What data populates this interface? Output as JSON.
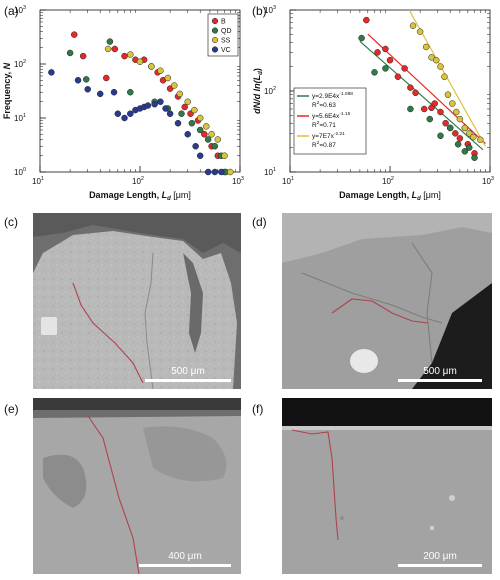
{
  "panel_letters": [
    "(a)",
    "(b)",
    "(c)",
    "(d)",
    "(e)",
    "(f)"
  ],
  "chart_data": [
    {
      "type": "scatter",
      "xscale": "log",
      "yscale": "log",
      "xlim": [
        10,
        1000
      ],
      "ylim": [
        1,
        1000
      ],
      "x_ticks": [
        "10",
        "10",
        "10"
      ],
      "x_tick_exps": [
        "1",
        "2",
        "3"
      ],
      "y_ticks": [
        "10",
        "10",
        "10",
        "10"
      ],
      "y_tick_exps": [
        "0",
        "1",
        "2",
        "3"
      ],
      "xlabel_prefix": "Damage Length, ",
      "xlabel_var": "L",
      "xlabel_sub": "d",
      "xlabel_unit": " [μm]",
      "ylabel_prefix": "Frequency, ",
      "ylabel_var": "N",
      "legend_position": "top-right",
      "series": [
        {
          "name": "B",
          "color": "#e32a2a",
          "points": [
            [
              22,
              350
            ],
            [
              27,
              140
            ],
            [
              46,
              55
            ],
            [
              56,
              190
            ],
            [
              70,
              140
            ],
            [
              90,
              120
            ],
            [
              110,
              120
            ],
            [
              130,
              90
            ],
            [
              150,
              70
            ],
            [
              170,
              50
            ],
            [
              200,
              35
            ],
            [
              240,
              25
            ],
            [
              280,
              16
            ],
            [
              320,
              12
            ],
            [
              380,
              9
            ],
            [
              440,
              5
            ],
            [
              520,
              3
            ],
            [
              600,
              2
            ],
            [
              700,
              1
            ]
          ]
        },
        {
          "name": "QD",
          "color": "#2f7a47",
          "points": [
            [
              20,
              160
            ],
            [
              29,
              52
            ],
            [
              50,
              260
            ],
            [
              80,
              30
            ],
            [
              140,
              20
            ],
            [
              190,
              15
            ],
            [
              260,
              12
            ],
            [
              330,
              8
            ],
            [
              400,
              6
            ],
            [
              480,
              4
            ],
            [
              560,
              3
            ],
            [
              650,
              2
            ],
            [
              720,
              1
            ]
          ]
        },
        {
          "name": "SS",
          "color": "#d9c33c",
          "points": [
            [
              48,
              190
            ],
            [
              80,
              150
            ],
            [
              100,
              110
            ],
            [
              130,
              90
            ],
            [
              160,
              75
            ],
            [
              190,
              55
            ],
            [
              220,
              40
            ],
            [
              250,
              28
            ],
            [
              300,
              20
            ],
            [
              350,
              14
            ],
            [
              400,
              10
            ],
            [
              460,
              7
            ],
            [
              520,
              5
            ],
            [
              600,
              4
            ],
            [
              700,
              2
            ],
            [
              800,
              1
            ]
          ]
        },
        {
          "name": "VC",
          "color": "#2a3a8f",
          "points": [
            [
              13,
              70
            ],
            [
              24,
              50
            ],
            [
              30,
              34
            ],
            [
              40,
              28
            ],
            [
              55,
              30
            ],
            [
              60,
              12
            ],
            [
              70,
              10
            ],
            [
              80,
              12
            ],
            [
              90,
              14
            ],
            [
              100,
              15
            ],
            [
              110,
              16
            ],
            [
              120,
              17
            ],
            [
              140,
              18
            ],
            [
              160,
              20
            ],
            [
              180,
              15
            ],
            [
              200,
              12
            ],
            [
              240,
              8
            ],
            [
              300,
              5
            ],
            [
              360,
              3
            ],
            [
              400,
              2
            ],
            [
              480,
              1
            ],
            [
              560,
              1
            ],
            [
              650,
              1
            ]
          ]
        }
      ]
    },
    {
      "type": "scatter",
      "xscale": "log",
      "yscale": "log",
      "xlim": [
        10,
        1000
      ],
      "ylim": [
        10,
        1000
      ],
      "x_ticks": [
        "10",
        "10",
        "10"
      ],
      "x_tick_exps": [
        "1",
        "2",
        "3"
      ],
      "y_ticks": [
        "10",
        "10",
        "10"
      ],
      "y_tick_exps": [
        "1",
        "2",
        "3"
      ],
      "xlabel_prefix": "Damage Length, ",
      "xlabel_var": "L",
      "xlabel_sub": "d",
      "xlabel_unit": " [μm]",
      "ylabel_text": "dN/d ln(L",
      "ylabel_sub": "d",
      "ylabel_close": ")",
      "legend_position": "middle-left",
      "fits": [
        {
          "eq": "y=2.9E4x",
          "exp": "-1.088",
          "r2_prefix": "R",
          "r2_sup": "2",
          "r2_value": "=0.63",
          "color": "#2f7a47",
          "a": 29000,
          "b": -1.088,
          "range": [
            50,
            850
          ]
        },
        {
          "eq": "y=5.6E4x",
          "exp": "-1.15",
          "r2_prefix": "R",
          "r2_sup": "2",
          "r2_value": "=0.71",
          "color": "#e32a2a",
          "a": 56000,
          "b": -1.15,
          "range": [
            60,
            900
          ]
        },
        {
          "eq": "y=7E7x",
          "exp": "-2.21",
          "r2_prefix": "R",
          "r2_sup": "2",
          "r2_value": "=0.87",
          "color": "#d9c33c",
          "a": 70000000,
          "b": -2.21,
          "range": [
            150,
            900
          ]
        }
      ],
      "series": [
        {
          "name": "B",
          "color": "#e32a2a",
          "points": [
            [
              58,
              750
            ],
            [
              75,
              300
            ],
            [
              90,
              330
            ],
            [
              100,
              240
            ],
            [
              120,
              150
            ],
            [
              140,
              190
            ],
            [
              160,
              110
            ],
            [
              180,
              95
            ],
            [
              220,
              60
            ],
            [
              260,
              62
            ],
            [
              280,
              70
            ],
            [
              320,
              55
            ],
            [
              360,
              40
            ],
            [
              400,
              35
            ],
            [
              450,
              30
            ],
            [
              500,
              26
            ],
            [
              560,
              35
            ],
            [
              600,
              22
            ],
            [
              700,
              17
            ]
          ]
        },
        {
          "name": "QD",
          "color": "#2f7a47",
          "points": [
            [
              52,
              450
            ],
            [
              70,
              170
            ],
            [
              90,
              190
            ],
            [
              160,
              60
            ],
            [
              250,
              45
            ],
            [
              320,
              28
            ],
            [
              400,
              35
            ],
            [
              480,
              22
            ],
            [
              560,
              18
            ],
            [
              620,
              20
            ],
            [
              700,
              15
            ]
          ]
        },
        {
          "name": "SS",
          "color": "#d9c33c",
          "points": [
            [
              170,
              640
            ],
            [
              200,
              540
            ],
            [
              230,
              350
            ],
            [
              260,
              260
            ],
            [
              290,
              240
            ],
            [
              320,
              200
            ],
            [
              350,
              150
            ],
            [
              380,
              90
            ],
            [
              420,
              70
            ],
            [
              460,
              55
            ],
            [
              500,
              45
            ],
            [
              560,
              35
            ],
            [
              620,
              30
            ],
            [
              680,
              27
            ],
            [
              800,
              25
            ]
          ]
        },
        {
          "name": "VC",
          "color": "#2a3a8f",
          "points": []
        }
      ]
    }
  ],
  "micrographs": [
    {
      "letter": "(c)",
      "scalebar": "500 μm"
    },
    {
      "letter": "(d)",
      "scalebar": "500 μm"
    },
    {
      "letter": "(e)",
      "scalebar": "400 μm"
    },
    {
      "letter": "(f)",
      "scalebar": "200 μm"
    }
  ]
}
